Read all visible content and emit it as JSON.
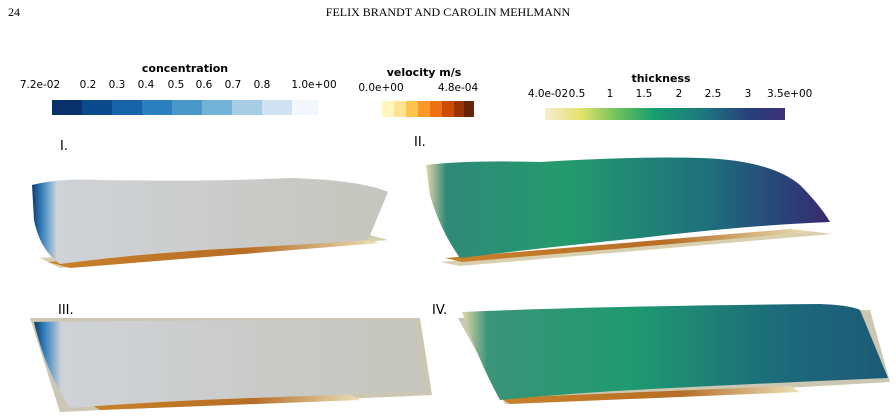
{
  "header": {
    "page_number": "24",
    "running_title": "FELIX BRANDT AND CAROLIN MEHLMANN"
  },
  "colorbars": [
    {
      "title": "concentration",
      "ticks": [
        "7.2e-02",
        "0.2",
        "0.3",
        "0.4",
        "0.5",
        "0.6",
        "0.7",
        "0.8",
        "1.0e+00"
      ]
    },
    {
      "title": "velocity m/s",
      "ticks": [
        "0.0e+00",
        "4.8e-04"
      ]
    },
    {
      "title": "thickness",
      "ticks": [
        "4.0e-02",
        "0.5",
        "1",
        "1.5",
        "2",
        "2.5",
        "3",
        "3.5e+00"
      ]
    }
  ],
  "panels": [
    {
      "label": "I."
    },
    {
      "label": "II."
    },
    {
      "label": "III."
    },
    {
      "label": "IV."
    }
  ]
}
